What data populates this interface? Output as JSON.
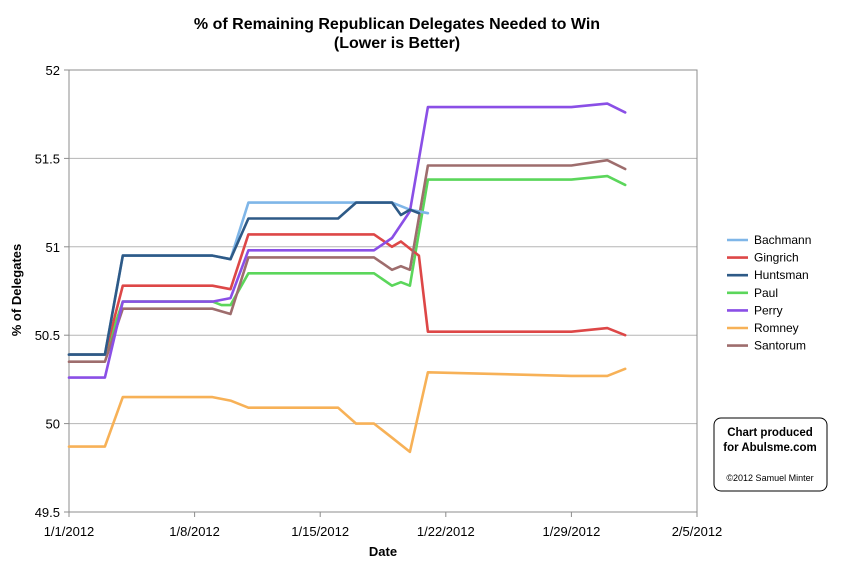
{
  "chart_data": {
    "type": "line",
    "title": "% of Remaining Republican Delegates Needed to Win",
    "subtitle": "(Lower is Better)",
    "xlabel": "Date",
    "ylabel": "% of Delegates",
    "xlim": [
      "2012-01-01",
      "2012-02-05"
    ],
    "ylim": [
      49.5,
      52
    ],
    "yticks": [
      49.5,
      50,
      50.5,
      51,
      51.5,
      52
    ],
    "ytick_labels": [
      "49.5",
      "50",
      "50.5",
      "51",
      "51.5",
      "52"
    ],
    "xticks": [
      "2012-01-01",
      "2012-01-08",
      "2012-01-15",
      "2012-01-22",
      "2012-01-29",
      "2012-02-05"
    ],
    "xtick_labels": [
      "1/1/2012",
      "1/8/2012",
      "1/15/2012",
      "1/22/2012",
      "1/29/2012",
      "2/5/2012"
    ],
    "grid": "horizontal",
    "legend": "right",
    "series": [
      {
        "name": "Bachmann",
        "color": "#7fb6e8",
        "x": [
          "2012-01-01",
          "2012-01-03",
          "2012-01-04",
          "2012-01-09",
          "2012-01-10",
          "2012-01-11",
          "2012-01-19",
          "2012-01-20",
          "2012-01-21"
        ],
        "y": [
          50.39,
          50.39,
          50.95,
          50.95,
          50.93,
          51.25,
          51.25,
          51.21,
          51.19
        ]
      },
      {
        "name": "Gingrich",
        "color": "#dd4747",
        "x": [
          "2012-01-01",
          "2012-01-03",
          "2012-01-04",
          "2012-01-09",
          "2012-01-10",
          "2012-01-11",
          "2012-01-18",
          "2012-01-19",
          "2012-01-19.5",
          "2012-01-20",
          "2012-01-20.5",
          "2012-01-21",
          "2012-01-29",
          "2012-01-31",
          "2012-02-01"
        ],
        "y": [
          50.39,
          50.39,
          50.78,
          50.78,
          50.76,
          51.07,
          51.07,
          51.0,
          51.03,
          50.99,
          50.95,
          50.52,
          50.52,
          50.54,
          50.5
        ]
      },
      {
        "name": "Huntsman",
        "color": "#2e5a87",
        "x": [
          "2012-01-01",
          "2012-01-03",
          "2012-01-04",
          "2012-01-09",
          "2012-01-10",
          "2012-01-11",
          "2012-01-16",
          "2012-01-17",
          "2012-01-19",
          "2012-01-19.5",
          "2012-01-20",
          "2012-01-20.5"
        ],
        "y": [
          50.39,
          50.39,
          50.95,
          50.95,
          50.93,
          51.16,
          51.16,
          51.25,
          51.25,
          51.18,
          51.21,
          51.19
        ]
      },
      {
        "name": "Paul",
        "color": "#5bd65b",
        "x": [
          "2012-01-01",
          "2012-01-03",
          "2012-01-04",
          "2012-01-09",
          "2012-01-09.5",
          "2012-01-10",
          "2012-01-11",
          "2012-01-18",
          "2012-01-19",
          "2012-01-19.5",
          "2012-01-20",
          "2012-01-21",
          "2012-01-29",
          "2012-01-31",
          "2012-02-01"
        ],
        "y": [
          50.39,
          50.39,
          50.69,
          50.69,
          50.67,
          50.67,
          50.85,
          50.85,
          50.78,
          50.8,
          50.78,
          51.38,
          51.38,
          51.4,
          51.35
        ]
      },
      {
        "name": "Perry",
        "color": "#8a4fe6",
        "x": [
          "2012-01-01",
          "2012-01-03",
          "2012-01-04",
          "2012-01-09",
          "2012-01-10",
          "2012-01-11",
          "2012-01-18",
          "2012-01-19",
          "2012-01-20",
          "2012-01-21",
          "2012-01-29",
          "2012-01-31",
          "2012-02-01"
        ],
        "y": [
          50.26,
          50.26,
          50.69,
          50.69,
          50.71,
          50.98,
          50.98,
          51.05,
          51.2,
          51.79,
          51.79,
          51.81,
          51.76
        ]
      },
      {
        "name": "Romney",
        "color": "#f7b157",
        "x": [
          "2012-01-01",
          "2012-01-03",
          "2012-01-04",
          "2012-01-09",
          "2012-01-10",
          "2012-01-11",
          "2012-01-16",
          "2012-01-17",
          "2012-01-18",
          "2012-01-19",
          "2012-01-20",
          "2012-01-21",
          "2012-01-29",
          "2012-01-31",
          "2012-02-01"
        ],
        "y": [
          49.87,
          49.87,
          50.15,
          50.15,
          50.13,
          50.09,
          50.09,
          50.0,
          50.0,
          49.92,
          49.84,
          50.29,
          50.27,
          50.27,
          50.31
        ]
      },
      {
        "name": "Santorum",
        "color": "#9e6d6d",
        "x": [
          "2012-01-01",
          "2012-01-03",
          "2012-01-04",
          "2012-01-09",
          "2012-01-10",
          "2012-01-11",
          "2012-01-18",
          "2012-01-19",
          "2012-01-19.5",
          "2012-01-20",
          "2012-01-21",
          "2012-01-29",
          "2012-01-31",
          "2012-02-01"
        ],
        "y": [
          50.35,
          50.35,
          50.65,
          50.65,
          50.62,
          50.94,
          50.94,
          50.87,
          50.89,
          50.87,
          51.46,
          51.46,
          51.49,
          51.44
        ]
      }
    ]
  },
  "credit": {
    "line1": "Chart produced",
    "line2": "for Abulsme.com",
    "copyright": "©2012 Samuel Minter"
  }
}
